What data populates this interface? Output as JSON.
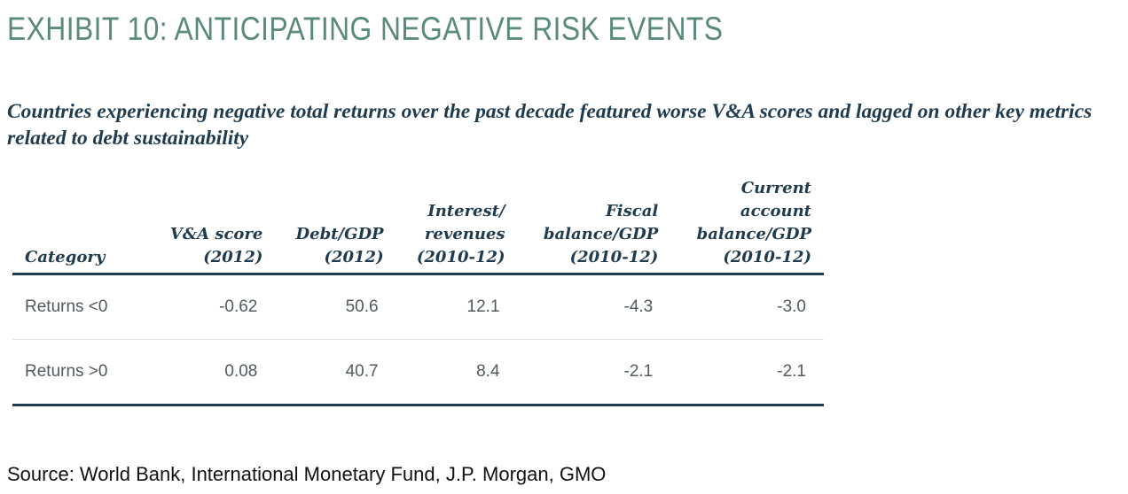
{
  "exhibit_title": "EXHIBIT 10: ANTICIPATING NEGATIVE RISK EVENTS",
  "subtitle": "Countries experiencing negative total returns over the past decade featured worse V&A scores and lagged on other key metrics related to debt sustainability",
  "table": {
    "headers": [
      "Category",
      "V&A score\n(2012)",
      "Debt/GDP\n(2012)",
      "Interest/\nrevenues\n(2010-12)",
      "Fiscal\nbalance/GDP\n(2010-12)",
      "Current\naccount\nbalance/GDP\n(2010-12)"
    ],
    "rows": [
      [
        "Returns <0",
        "-0.62",
        "50.6",
        "12.1",
        "-4.3",
        "-3.0"
      ],
      [
        "Returns >0",
        "0.08",
        "40.7",
        "8.4",
        "-2.1",
        "-2.1"
      ]
    ]
  },
  "source": "Source: World Bank, International Monetary Fund, J.P. Morgan, GMO",
  "colors": {
    "title": "#5a8a78",
    "header_text": "#1f3b4d",
    "rule": "#1f3b4d",
    "cell_text": "#505a5f"
  }
}
